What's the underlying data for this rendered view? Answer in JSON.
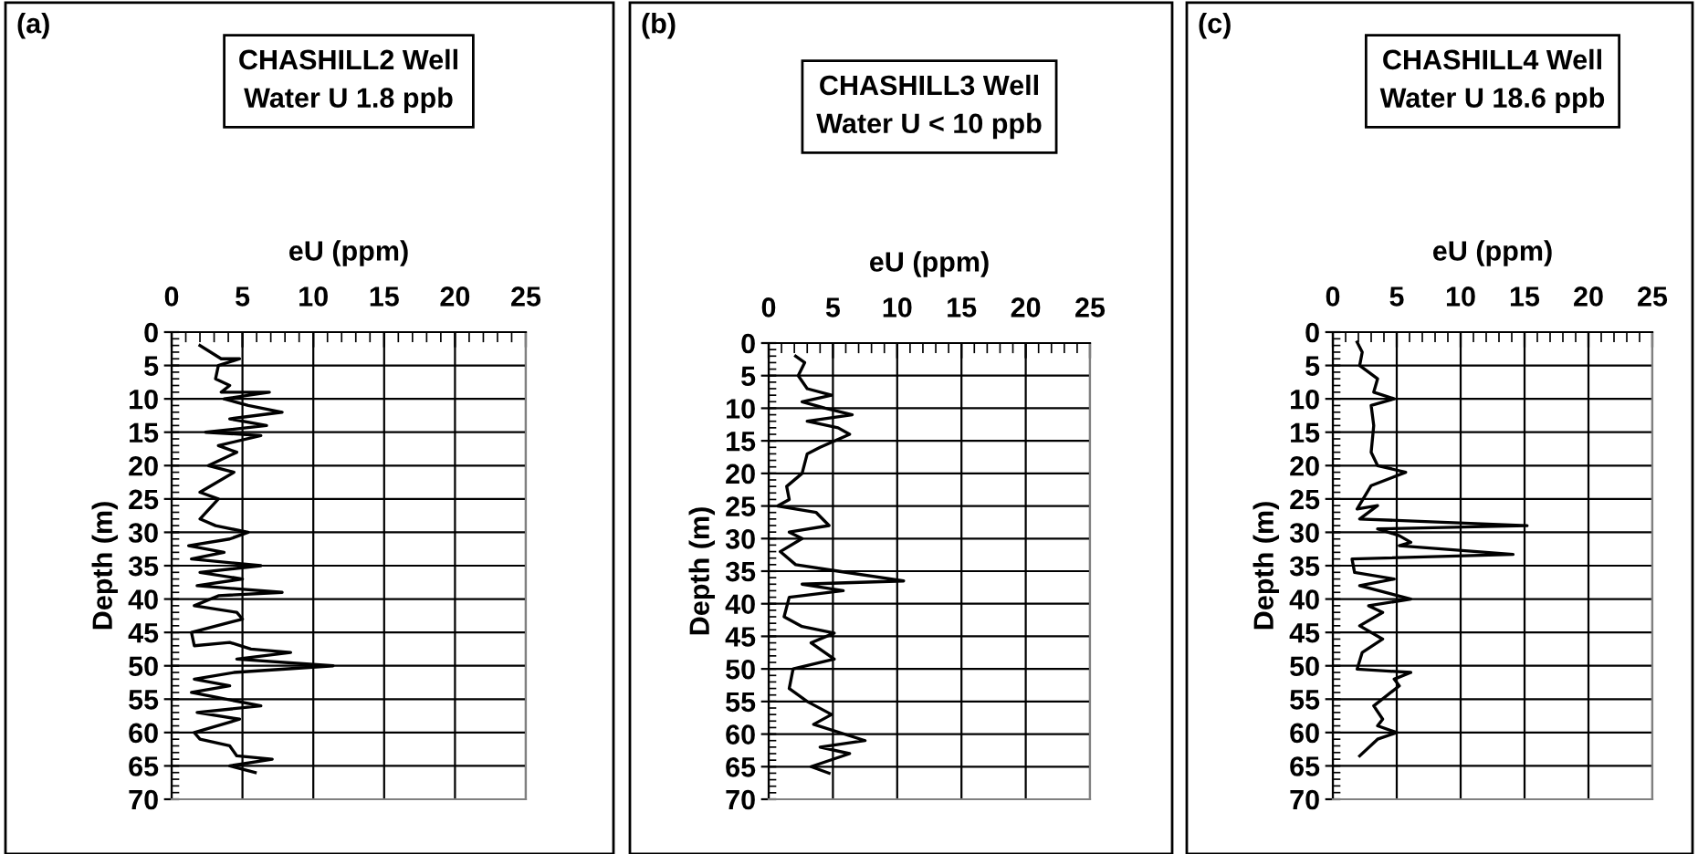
{
  "chart_data": [
    {
      "type": "line",
      "title": "CHASHILL2 Well\nWater U 1.8 ppb",
      "xlabel": "eU (ppm)",
      "ylabel": "Depth (m)",
      "annotations": [
        "(a)"
      ],
      "xlim": [
        0,
        25
      ],
      "xticks": [
        0,
        5,
        10,
        15,
        20,
        25
      ],
      "ylim": [
        70,
        0
      ],
      "yticks": [
        0,
        5,
        10,
        15,
        20,
        25,
        30,
        35,
        40,
        45,
        50,
        55,
        60,
        65,
        70
      ],
      "grid": true,
      "legend": false,
      "line_style": "solid",
      "marker": "none",
      "series": [
        {
          "color": "#000000",
          "x": [
            2.0,
            3.5,
            4.8,
            3.3,
            3.1,
            4.1,
            3.5,
            6.9,
            3.7,
            5.4,
            7.8,
            4.1,
            6.7,
            2.4,
            6.3,
            3.3,
            4.6,
            2.6,
            4.4,
            2.0,
            3.3,
            2.0,
            3.1,
            5.4,
            4.1,
            1.2,
            3.7,
            1.4,
            6.3,
            2.0,
            5.0,
            1.8,
            7.8,
            3.3,
            1.6,
            4.6,
            5.0,
            1.4,
            1.6,
            4.1,
            5.6,
            8.4,
            4.6,
            11.4,
            4.4,
            1.6,
            4.1,
            1.4,
            6.3,
            1.8,
            4.8,
            1.6,
            2.0,
            4.1,
            4.6,
            7.1,
            4.1,
            5.9
          ],
          "values": [
            2,
            4,
            4,
            5,
            7,
            8,
            9,
            9,
            10,
            11,
            12,
            13,
            14,
            15,
            15.5,
            17,
            18,
            20,
            21,
            24,
            25,
            28,
            29,
            30,
            31,
            32,
            33,
            34,
            35,
            36,
            37,
            38,
            39,
            39.5,
            41,
            42,
            43,
            45,
            47,
            46.5,
            47.5,
            48,
            49,
            50,
            51,
            52,
            53,
            54,
            56,
            57,
            58,
            60,
            61,
            62,
            63.5,
            64,
            65,
            66
          ]
        }
      ]
    },
    {
      "type": "line",
      "title": "CHASHILL3 Well\nWater U < 10 ppb",
      "xlabel": "eU (ppm)",
      "ylabel": "Depth (m)",
      "annotations": [
        "(b)"
      ],
      "xlim": [
        0,
        25
      ],
      "xticks": [
        0,
        5,
        10,
        15,
        20,
        25
      ],
      "ylim": [
        70,
        0
      ],
      "yticks": [
        0,
        5,
        10,
        15,
        20,
        25,
        30,
        35,
        40,
        45,
        50,
        55,
        60,
        65,
        70
      ],
      "grid": true,
      "legend": false,
      "line_style": "solid",
      "marker": "none",
      "series": [
        {
          "color": "#000000",
          "x": [
            2.1,
            2.8,
            2.3,
            3.0,
            4.9,
            2.6,
            4.4,
            6.5,
            3.0,
            5.4,
            6.3,
            4.0,
            3.0,
            2.6,
            1.4,
            1.6,
            0.7,
            3.7,
            4.7,
            1.6,
            2.6,
            0.9,
            2.1,
            5.4,
            10.5,
            2.6,
            5.8,
            1.6,
            1.2,
            2.6,
            5.1,
            3.3,
            5.1,
            1.9,
            1.6,
            3.0,
            4.9,
            3.5,
            7.5,
            4.0,
            6.3,
            3.3,
            4.7
          ],
          "values": [
            2,
            3,
            5,
            7,
            8,
            9,
            10,
            11,
            12,
            13,
            14,
            16,
            17,
            20,
            22,
            24,
            25,
            26,
            28,
            29,
            30,
            32,
            34,
            35,
            36.5,
            37,
            38,
            39,
            42,
            43.5,
            44.5,
            46,
            48.5,
            50,
            53,
            55,
            57,
            58.5,
            61,
            62,
            63,
            65,
            66
          ]
        }
      ]
    },
    {
      "type": "line",
      "title": "CHASHILL4 Well\nWater U 18.6 ppb",
      "xlabel": "eU (ppm)",
      "ylabel": "Depth (m)",
      "annotations": [
        "(c)"
      ],
      "xlim": [
        0,
        25
      ],
      "xticks": [
        0,
        5,
        10,
        15,
        20,
        25
      ],
      "ylim": [
        70,
        0
      ],
      "yticks": [
        0,
        5,
        10,
        15,
        20,
        25,
        30,
        35,
        40,
        45,
        50,
        55,
        60,
        65,
        70
      ],
      "grid": true,
      "legend": false,
      "line_style": "solid",
      "marker": "none",
      "series": [
        {
          "color": "#000000",
          "x": [
            1.9,
            2.3,
            2.1,
            3.5,
            3.2,
            4.8,
            3.0,
            3.2,
            3.0,
            3.5,
            5.7,
            3.0,
            1.9,
            3.5,
            2.1,
            15.2,
            3.5,
            5.2,
            6.1,
            5.2,
            14.1,
            1.5,
            1.7,
            4.8,
            2.1,
            6.1,
            2.8,
            3.9,
            2.1,
            3.9,
            2.3,
            1.9,
            6.1,
            4.8,
            5.2,
            3.2,
            3.9,
            3.5,
            5.0,
            3.5,
            2.1
          ],
          "values": [
            1.5,
            3,
            5,
            7,
            9,
            10,
            11,
            14,
            18,
            20,
            21,
            23,
            26.5,
            26,
            28,
            29,
            29.5,
            30.5,
            31.5,
            32,
            33.3,
            34,
            36,
            37,
            38,
            40,
            41,
            42,
            44,
            46,
            48,
            50.5,
            51,
            52,
            53,
            56,
            58,
            59,
            60,
            61,
            63.5
          ]
        }
      ]
    }
  ]
}
